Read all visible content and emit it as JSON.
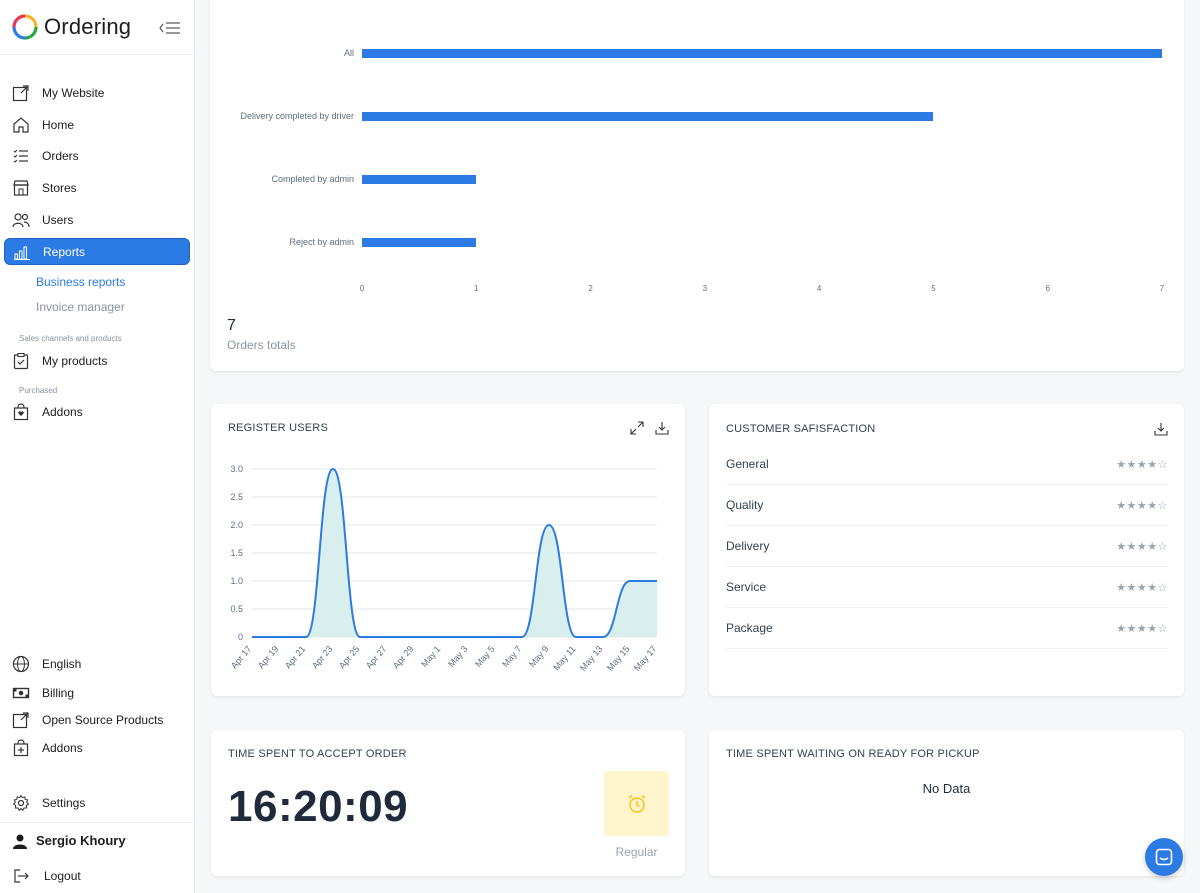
{
  "app": {
    "title": "Ordering"
  },
  "sidebar": {
    "items": [
      {
        "label": "My Website",
        "icon": "external-link-icon"
      },
      {
        "label": "Home",
        "icon": "home-icon"
      },
      {
        "label": "Orders",
        "icon": "list-icon"
      },
      {
        "label": "Stores",
        "icon": "shop-icon"
      },
      {
        "label": "Users",
        "icon": "people-icon"
      },
      {
        "label": "Reports",
        "icon": "bar-chart-icon",
        "active": true
      }
    ],
    "reports_sub": [
      "Business reports",
      "Invoice manager"
    ],
    "section_sales": "Sales channels and products",
    "my_products": "My products",
    "section_purchased": "Purchased",
    "addons_top": "Addons",
    "bottom": [
      "English",
      "Billing",
      "Open Source Products",
      "Addons",
      "Settings"
    ],
    "user_name": "Sergio Khoury",
    "logout": "Logout"
  },
  "orders_chart": {
    "total": "7",
    "total_label": "Orders totals",
    "chart_data": {
      "type": "bar",
      "orientation": "horizontal",
      "categories": [
        "All",
        "Delivery completed by driver",
        "Completed by admin",
        "Reject by admin"
      ],
      "values": [
        7,
        5,
        1,
        1
      ],
      "xlim": [
        0,
        7
      ],
      "xticks": [
        "0",
        "1",
        "2",
        "3",
        "4",
        "5",
        "6",
        "7"
      ],
      "color": "#2c7be5"
    }
  },
  "register_users": {
    "title": "REGISTER USERS",
    "chart_data": {
      "type": "area",
      "x": [
        "Apr 17",
        "Apr 19",
        "Apr 21",
        "Apr 23",
        "Apr 25",
        "Apr 27",
        "Apr 29",
        "May 1",
        "May 3",
        "May 5",
        "May 7",
        "May 9",
        "May 11",
        "May 13",
        "May 15",
        "May 17"
      ],
      "y": [
        0,
        0,
        0,
        3,
        0,
        0,
        0,
        0,
        0,
        0,
        0,
        2,
        0,
        0,
        1,
        1
      ],
      "yticks": [
        "3.0",
        "2.5",
        "2.0",
        "1.5",
        "1.0",
        "0.5",
        "0"
      ],
      "ylim": [
        0,
        3
      ],
      "line_color": "#2c7be5",
      "fill_color": "#d8efee"
    }
  },
  "satisfaction": {
    "title": "CUSTOMER SAFISFACTION",
    "rows": [
      {
        "label": "General",
        "stars": "★★★★☆"
      },
      {
        "label": "Quality",
        "stars": "★★★★☆"
      },
      {
        "label": "Delivery",
        "stars": "★★★★☆"
      },
      {
        "label": "Service",
        "stars": "★★★★☆"
      },
      {
        "label": "Package",
        "stars": "★★★★☆"
      }
    ]
  },
  "accept_order": {
    "title": "TIME SPENT TO ACCEPT ORDER",
    "time": "16:20:09",
    "badge": "Regular",
    "badge_icon": "alarm-clock-icon"
  },
  "pickup": {
    "title": "TIME SPENT WAITING ON READY FOR PICKUP",
    "empty": "No Data"
  },
  "colors": {
    "accent": "#2c7be5",
    "clock_bg": "#fff5cc",
    "clock_icon": "#f5c518"
  }
}
